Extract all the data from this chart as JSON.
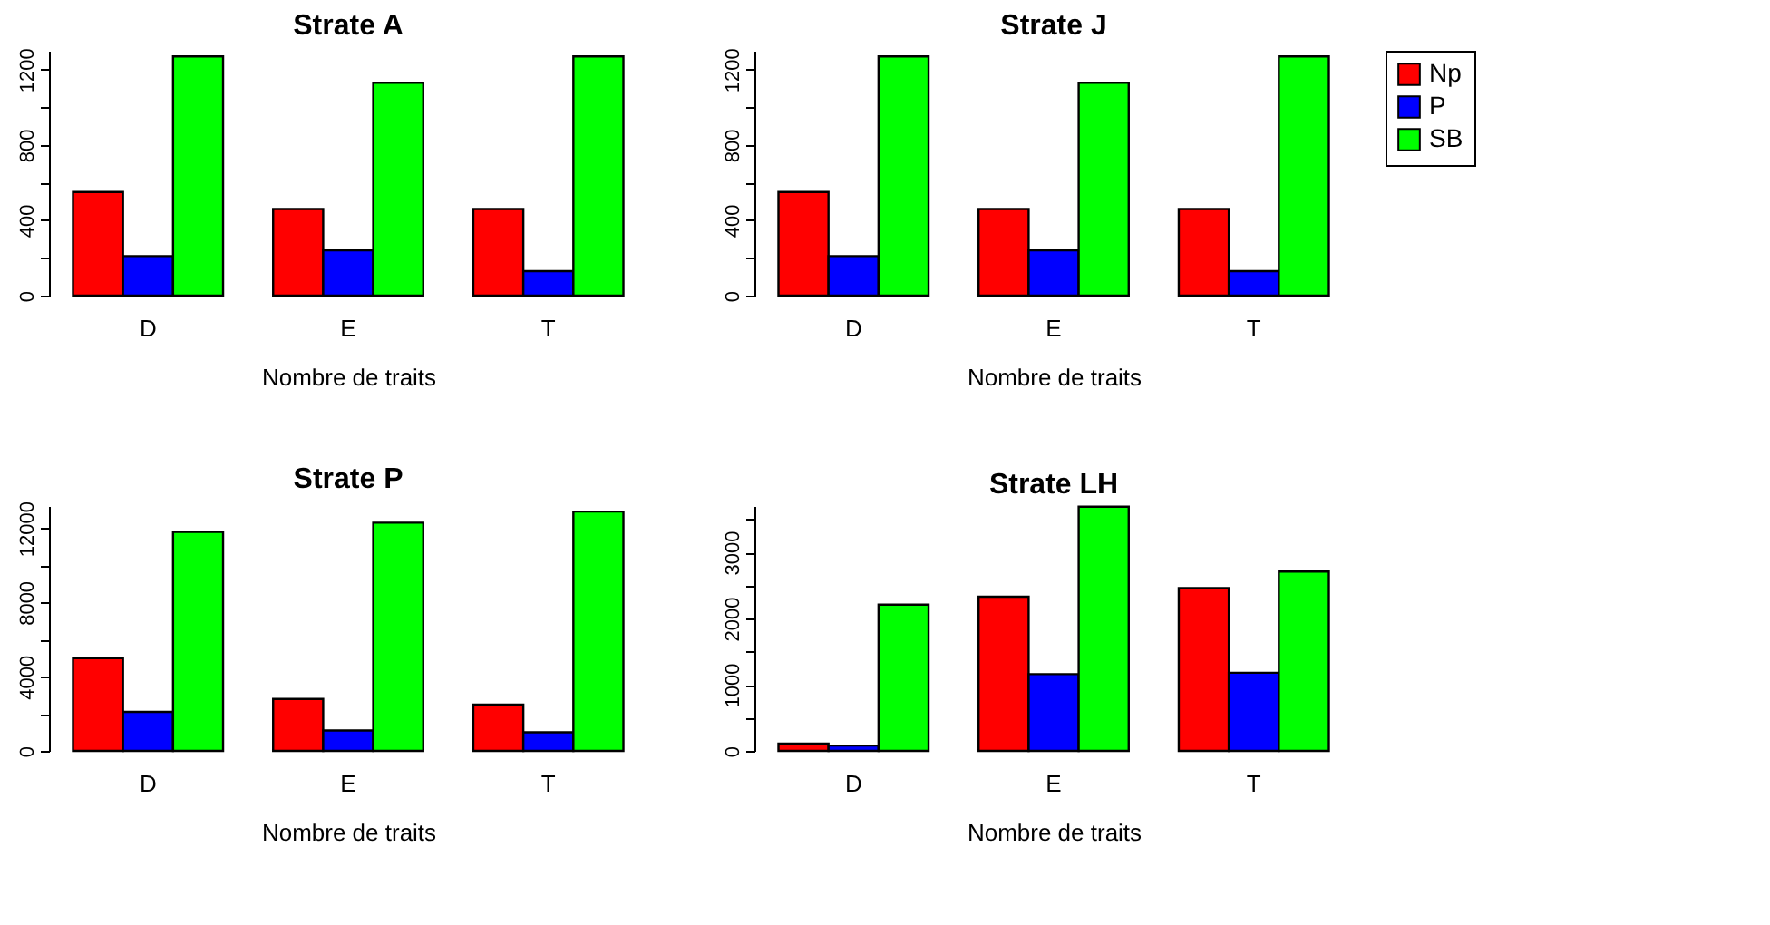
{
  "chart_data": [
    {
      "type": "bar",
      "title": "Strate A",
      "xlabel": "Nombre de traits",
      "categories": [
        "D",
        "E",
        "T"
      ],
      "series": [
        {
          "name": "Np",
          "color": "#ff0000",
          "values": [
            550,
            460,
            460
          ]
        },
        {
          "name": "P",
          "color": "#0000ff",
          "values": [
            210,
            240,
            130
          ]
        },
        {
          "name": "SB",
          "color": "#00ff00",
          "values": [
            1270,
            1130,
            1270
          ]
        }
      ],
      "ylim": [
        0,
        1300
      ],
      "yticks": [
        0,
        {
          "value": 200,
          "label": null
        },
        400,
        {
          "value": 600,
          "label": null
        },
        800,
        {
          "value": 1000,
          "label": null
        },
        1200
      ],
      "legend": "top right"
    },
    {
      "type": "bar",
      "title": "Strate J",
      "xlabel": "Nombre de traits",
      "categories": [
        "D",
        "E",
        "T"
      ],
      "series": [
        {
          "name": "Np",
          "color": "#ff0000",
          "values": [
            550,
            460,
            460
          ]
        },
        {
          "name": "P",
          "color": "#0000ff",
          "values": [
            210,
            240,
            130
          ]
        },
        {
          "name": "SB",
          "color": "#00ff00",
          "values": [
            1270,
            1130,
            1270
          ]
        }
      ],
      "ylim": [
        0,
        1300
      ],
      "yticks": [
        0,
        {
          "value": 200,
          "label": null
        },
        400,
        {
          "value": 600,
          "label": null
        },
        800,
        {
          "value": 1000,
          "label": null
        },
        1200
      ],
      "legend": "top right"
    },
    {
      "type": "bar",
      "title": "Strate P",
      "xlabel": "Nombre de traits",
      "categories": [
        "D",
        "E",
        "T"
      ],
      "series": [
        {
          "name": "Np",
          "color": "#ff0000",
          "values": [
            5000,
            2800,
            2500
          ]
        },
        {
          "name": "P",
          "color": "#0000ff",
          "values": [
            2100,
            1100,
            1000
          ]
        },
        {
          "name": "SB",
          "color": "#00ff00",
          "values": [
            11800,
            12300,
            12900
          ]
        }
      ],
      "ylim": [
        0,
        13200
      ],
      "yticks": [
        0,
        {
          "value": 2000,
          "label": null
        },
        4000,
        {
          "value": 6000,
          "label": null
        },
        8000,
        {
          "value": 10000,
          "label": null
        },
        12000
      ],
      "legend": "top right"
    },
    {
      "type": "bar",
      "title": "Strate LH",
      "xlabel": "Nombre de traits",
      "categories": [
        "D",
        "E",
        "T"
      ],
      "series": [
        {
          "name": "Np",
          "color": "#ff0000",
          "values": [
            110,
            2330,
            2460
          ]
        },
        {
          "name": "P",
          "color": "#0000ff",
          "values": [
            80,
            1160,
            1180
          ]
        },
        {
          "name": "SB",
          "color": "#00ff00",
          "values": [
            2210,
            3690,
            2710
          ]
        }
      ],
      "ylim": [
        0,
        3700
      ],
      "yticks": [
        0,
        {
          "value": 500,
          "label": null
        },
        1000,
        {
          "value": 1500,
          "label": null
        },
        2000,
        {
          "value": 2500,
          "label": null
        },
        3000,
        {
          "value": 3500,
          "label": null
        }
      ],
      "legend": "top right"
    }
  ]
}
